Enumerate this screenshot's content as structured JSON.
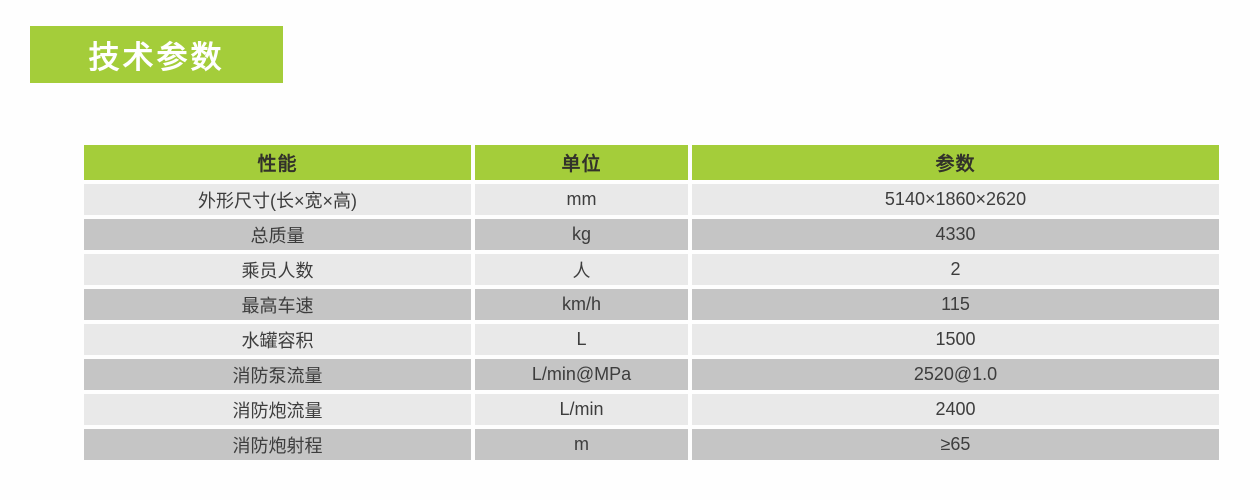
{
  "title_badge": {
    "label": "技术参数"
  },
  "colors": {
    "accent_green": "#a4cd3a",
    "header_text": "#32322a",
    "row_light": "#e9e9e9",
    "row_dark": "#c5c5c5",
    "body_text": "#3d3d3d",
    "badge_text": "#ffffff",
    "page_bg": "#fefefe"
  },
  "table": {
    "headers": [
      {
        "key": "performance",
        "label": "性能"
      },
      {
        "key": "unit",
        "label": "单位"
      },
      {
        "key": "value",
        "label": "参数"
      }
    ],
    "rows": [
      {
        "performance": "外形尺寸(长×宽×高)",
        "unit": "mm",
        "value": "5140×1860×2620"
      },
      {
        "performance": "总质量",
        "unit": "kg",
        "value": "4330"
      },
      {
        "performance": "乘员人数",
        "unit": "人",
        "value": "2"
      },
      {
        "performance": "最高车速",
        "unit": "km/h",
        "value": "115"
      },
      {
        "performance": "水罐容积",
        "unit": "L",
        "value": "1500"
      },
      {
        "performance": "消防泵流量",
        "unit": "L/min@MPa",
        "value": "2520@1.0"
      },
      {
        "performance": "消防炮流量",
        "unit": "L/min",
        "value": "2400"
      },
      {
        "performance": "消防炮射程",
        "unit": "m",
        "value": "≥65"
      }
    ]
  }
}
